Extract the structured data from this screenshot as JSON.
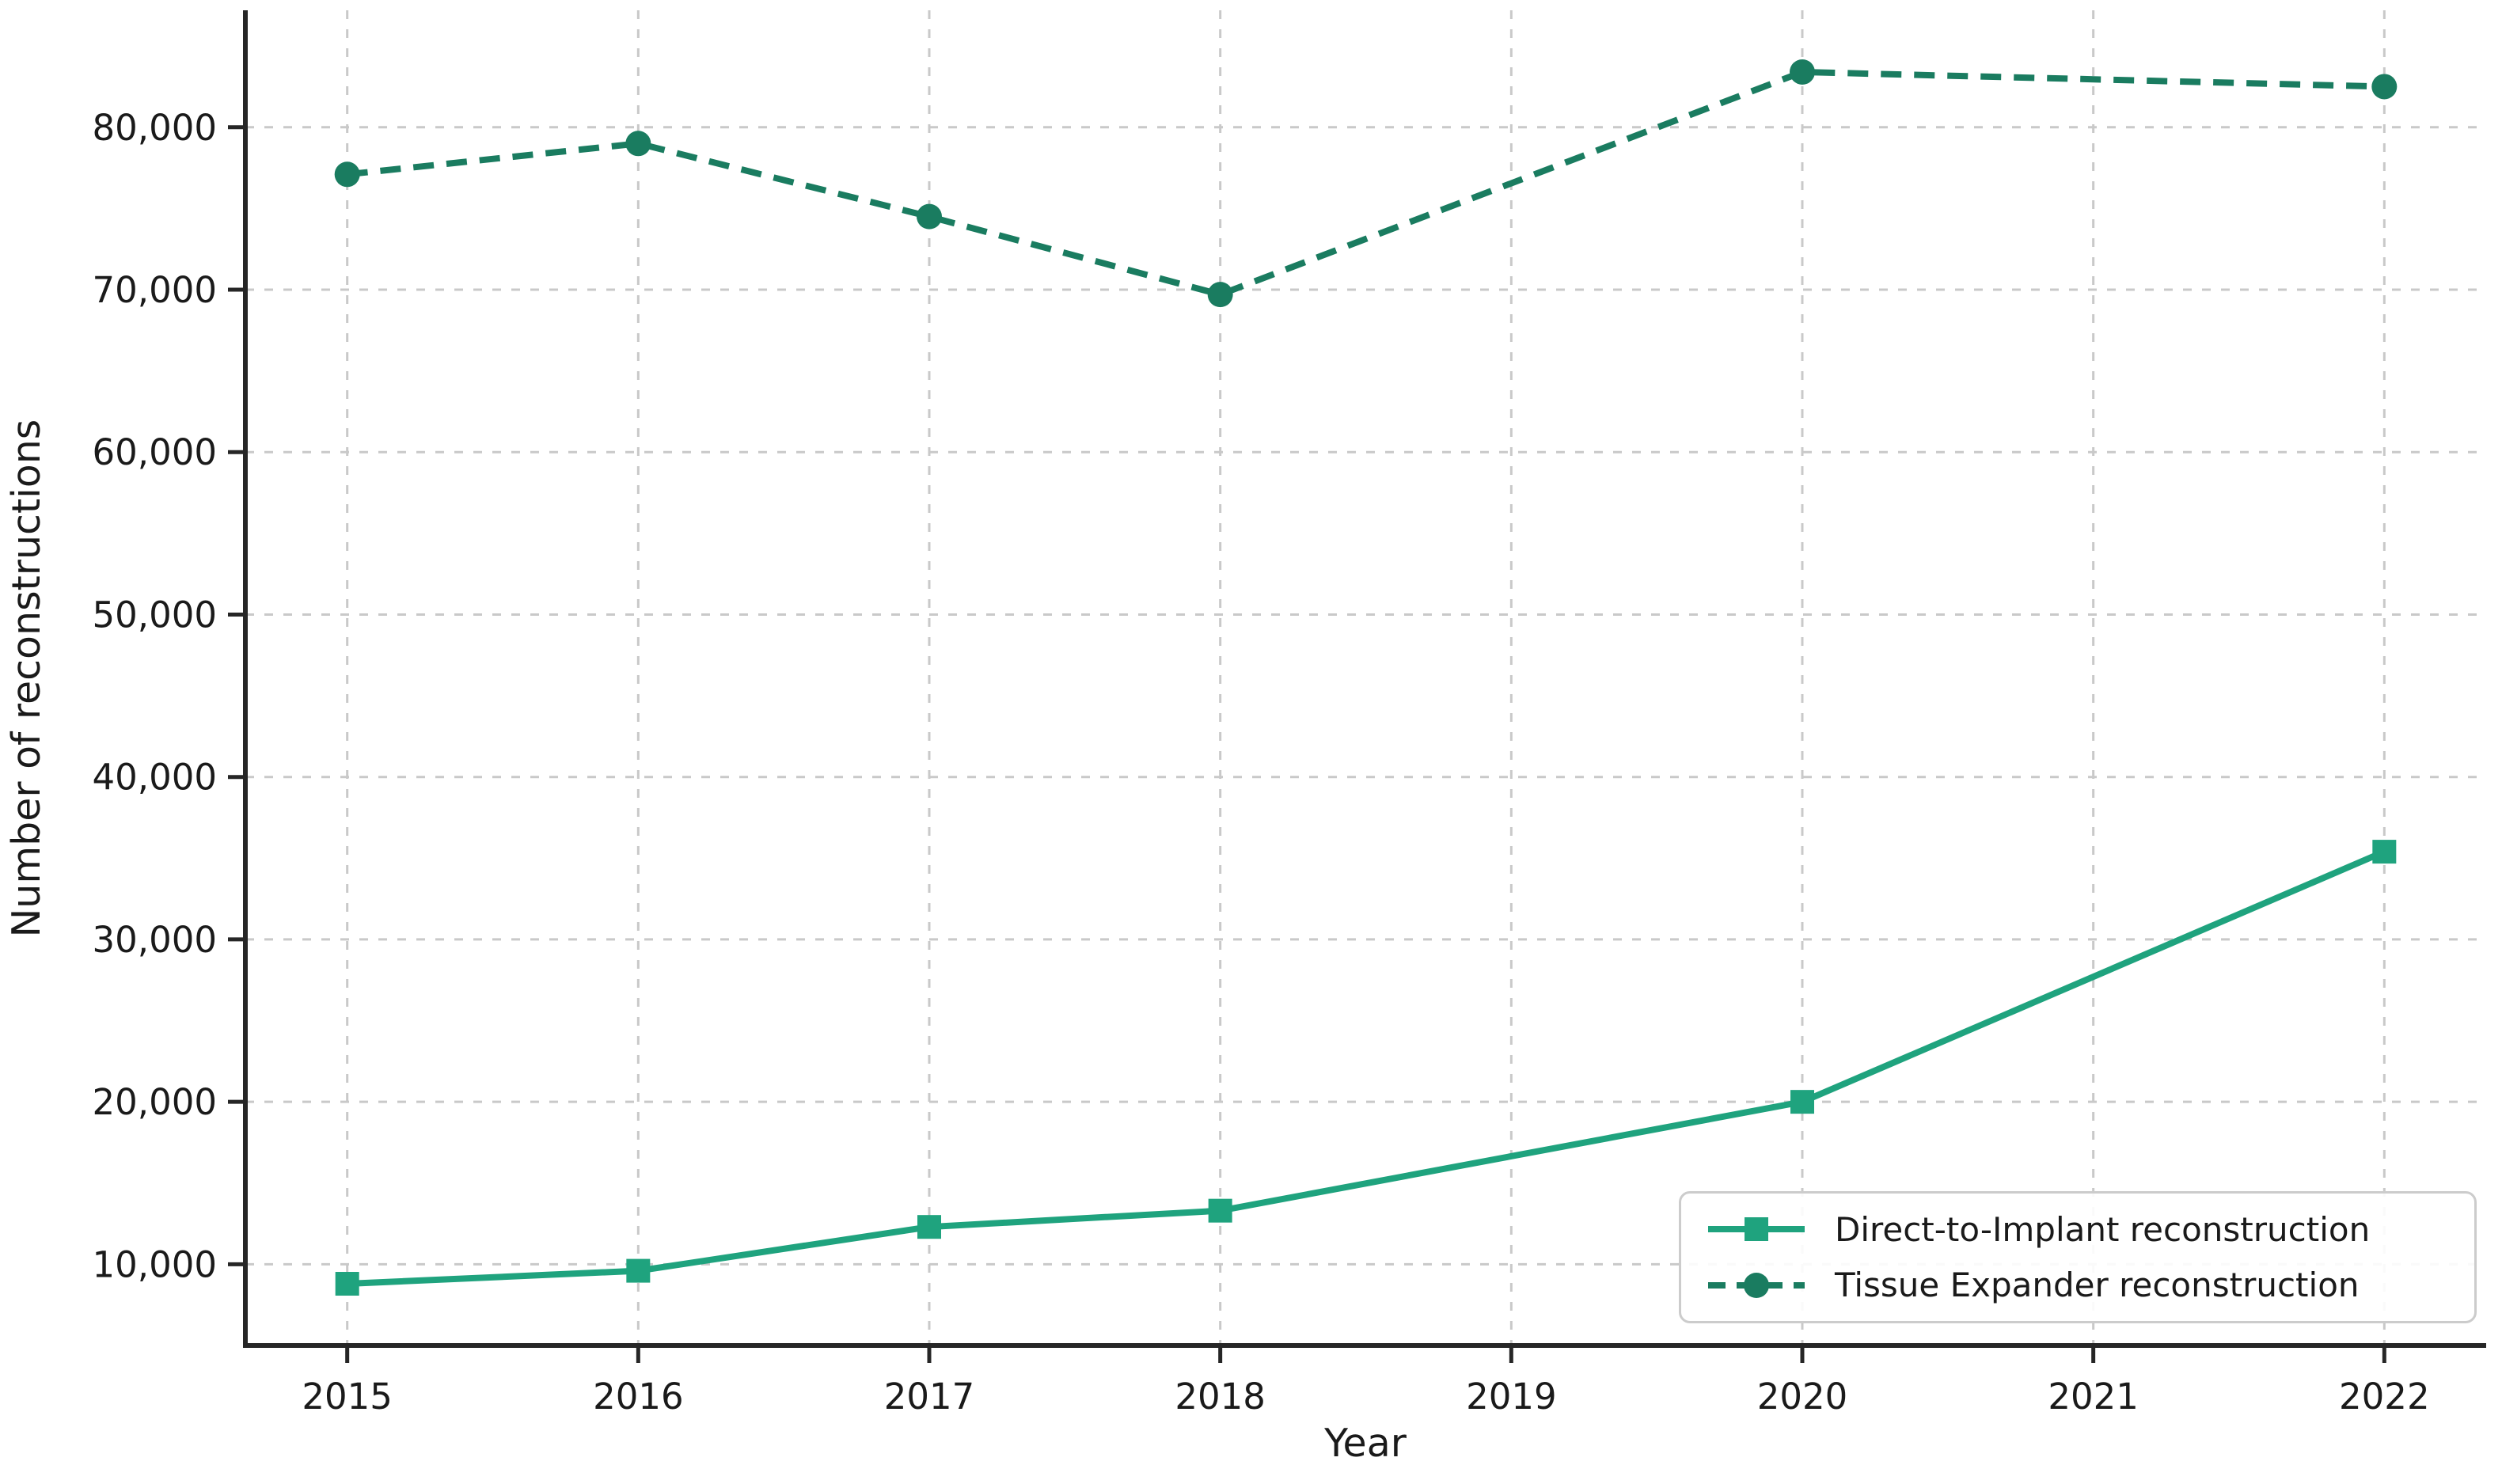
{
  "figure": {
    "background_color": "#ffffff",
    "grid_color": "#c9c9c9",
    "axis_color": "#262626",
    "text_color": "#1a1a1a"
  },
  "chart_data": {
    "type": "line",
    "title": "",
    "xlabel": "Year",
    "ylabel": "Number of reconstructions",
    "grid": true,
    "legend_position": "lower right",
    "xlim": [
      2014.65,
      2022.35
    ],
    "ylim": [
      5000,
      87200
    ],
    "x_ticks": [
      {
        "value": 2015,
        "label": "2015"
      },
      {
        "value": 2016,
        "label": "2016"
      },
      {
        "value": 2017,
        "label": "2017"
      },
      {
        "value": 2018,
        "label": "2018"
      },
      {
        "value": 2019,
        "label": "2019"
      },
      {
        "value": 2020,
        "label": "2020"
      },
      {
        "value": 2021,
        "label": "2021"
      },
      {
        "value": 2022,
        "label": "2022"
      }
    ],
    "y_ticks": [
      {
        "value": 10000,
        "label": "10,000"
      },
      {
        "value": 20000,
        "label": "20,000"
      },
      {
        "value": 30000,
        "label": "30,000"
      },
      {
        "value": 40000,
        "label": "40,000"
      },
      {
        "value": 50000,
        "label": "50,000"
      },
      {
        "value": 60000,
        "label": "60,000"
      },
      {
        "value": 70000,
        "label": "70,000"
      },
      {
        "value": 80000,
        "label": "80,000"
      }
    ],
    "series": [
      {
        "name": "Direct-to-Implant reconstruction",
        "color": "#1fa37e",
        "marker": "square",
        "line_style": "solid",
        "dash": "",
        "x": [
          2015,
          2016,
          2017,
          2018,
          2020,
          2022
        ],
        "values": [
          8800,
          9600,
          12300,
          13300,
          20000,
          35400
        ]
      },
      {
        "name": "Tissue Expander reconstruction",
        "color": "#1a7c60",
        "marker": "circle",
        "line_style": "dashed",
        "dash": "26 16",
        "x": [
          2015,
          2016,
          2017,
          2018,
          2020,
          2022
        ],
        "values": [
          77100,
          79000,
          74500,
          69700,
          83400,
          82500
        ]
      }
    ]
  }
}
